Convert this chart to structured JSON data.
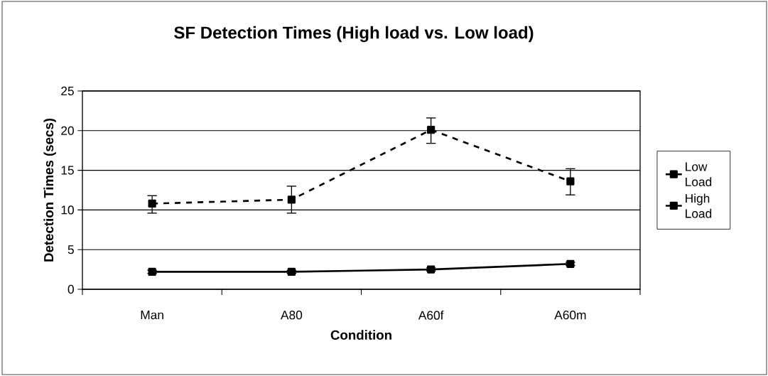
{
  "chart_data": {
    "type": "line",
    "title": "SF Detection Times (High load vs. Low load)",
    "xlabel": "Condition",
    "ylabel": "Detection Times (secs)",
    "categories": [
      "Man",
      "A80",
      "A60f",
      "A60m"
    ],
    "series": [
      {
        "name": "Low Load",
        "color": "#000000",
        "line_style": "solid",
        "values": [
          2.2,
          2.2,
          2.5,
          3.2
        ],
        "errors": [
          0.2,
          0.2,
          0.2,
          0.2
        ]
      },
      {
        "name": "High Load",
        "color": "#000000",
        "line_style": "dashed",
        "values": [
          10.8,
          11.3,
          20.1,
          13.6
        ],
        "errors": [
          [
            9.6,
            11.8
          ],
          [
            9.6,
            13.0
          ],
          [
            18.4,
            21.6
          ],
          [
            11.9,
            15.2
          ]
        ]
      }
    ],
    "ylim": [
      0,
      25
    ],
    "yticks": [
      0,
      5,
      10,
      15,
      20,
      25
    ],
    "grid": "y",
    "legend": "right",
    "marker": "square"
  }
}
